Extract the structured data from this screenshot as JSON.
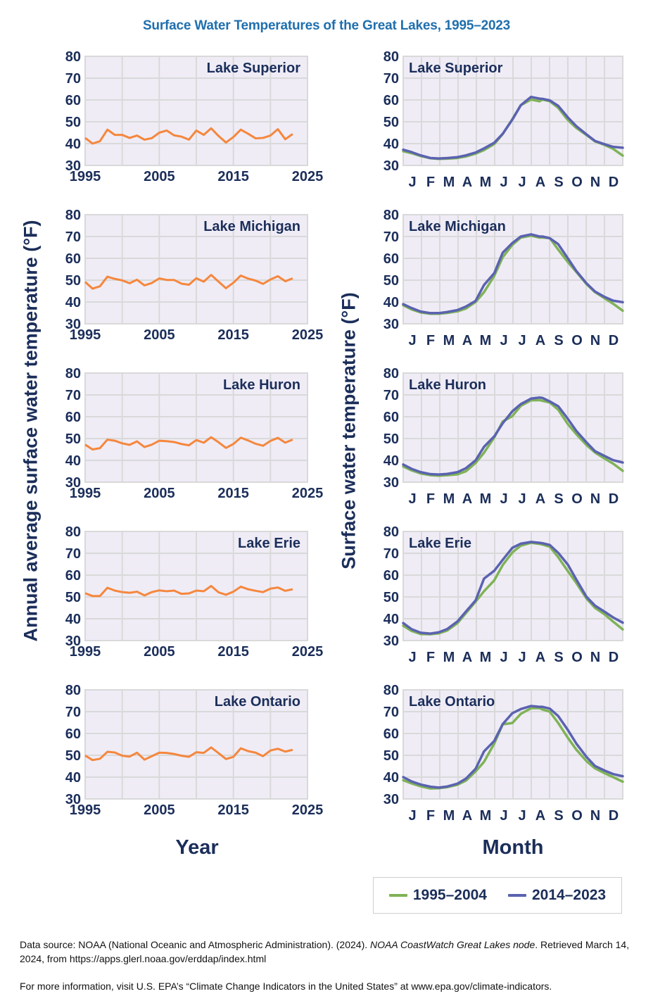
{
  "title": "Surface Water Temperatures of the Great Lakes, 1995–2023",
  "left_axis_label": "Annual average surface water temperature (°F)",
  "right_axis_label": "Surface water temperature (°F)",
  "left_xlabel": "Year",
  "right_xlabel": "Month",
  "legend": {
    "items": [
      {
        "label": "1995–2004",
        "color": "#7fb356"
      },
      {
        "label": "2014–2023",
        "color": "#5b62b0"
      }
    ]
  },
  "footer": {
    "source_prefix": "Data source: NOAA (National Oceanic and Atmospheric Administration). (2024). ",
    "source_title": "NOAA CoastWatch Great Lakes node",
    "source_suffix": ". Retrieved March 14, 2024, from https://apps.glerl.noaa.gov/erddap/index.html",
    "more_info": "For more information, visit U.S. EPA’s “Climate Change Indicators in the United States” at www.epa.gov/climate-indicators."
  },
  "colors": {
    "annual_line": "#f5873d",
    "plot_bg": "#efecf6",
    "grid": "#d9d9d9",
    "text": "#1b2e5a",
    "title": "#1f6fae"
  },
  "chart_data": [
    {
      "type": "line",
      "panel": "annual",
      "title": "Lake Superior",
      "xlabel": "Year",
      "ylabel": "Annual average surface water temperature (°F)",
      "xlim": [
        1995,
        2025
      ],
      "ylim": [
        30,
        80
      ],
      "xticks": [
        1995,
        2005,
        2015,
        2025
      ],
      "yticks": [
        30,
        40,
        50,
        60,
        70,
        80
      ],
      "grid": true,
      "x": [
        1995,
        1996,
        1997,
        1998,
        1999,
        2000,
        2001,
        2002,
        2003,
        2004,
        2005,
        2006,
        2007,
        2008,
        2009,
        2010,
        2011,
        2012,
        2013,
        2014,
        2015,
        2016,
        2017,
        2018,
        2019,
        2020,
        2021,
        2022,
        2023
      ],
      "values": [
        42.6,
        40.0,
        41.1,
        46.4,
        44.0,
        44.0,
        42.6,
        43.7,
        41.8,
        42.5,
        45.0,
        46.0,
        43.8,
        43.2,
        41.8,
        46.0,
        44.0,
        47.0,
        43.5,
        40.5,
        43.0,
        46.4,
        44.5,
        42.4,
        42.6,
        43.7,
        46.6,
        42.0,
        44.4
      ]
    },
    {
      "type": "line",
      "panel": "annual",
      "title": "Lake Michigan",
      "xlabel": "Year",
      "ylabel": "Annual average surface water temperature (°F)",
      "xlim": [
        1995,
        2025
      ],
      "ylim": [
        30,
        80
      ],
      "xticks": [
        1995,
        2005,
        2015,
        2025
      ],
      "yticks": [
        30,
        40,
        50,
        60,
        70,
        80
      ],
      "grid": true,
      "x": [
        1995,
        1996,
        1997,
        1998,
        1999,
        2000,
        2001,
        2002,
        2003,
        2004,
        2005,
        2006,
        2007,
        2008,
        2009,
        2010,
        2011,
        2012,
        2013,
        2014,
        2015,
        2016,
        2017,
        2018,
        2019,
        2020,
        2021,
        2022,
        2023
      ],
      "values": [
        49.2,
        46.1,
        47.2,
        51.6,
        50.6,
        49.9,
        48.6,
        50.2,
        47.6,
        48.7,
        50.8,
        50.1,
        50.1,
        48.4,
        47.9,
        50.9,
        49.3,
        52.4,
        49.3,
        46.3,
        48.8,
        52.1,
        50.7,
        49.8,
        48.3,
        50.3,
        51.8,
        49.5,
        50.8
      ]
    },
    {
      "type": "line",
      "panel": "annual",
      "title": "Lake Huron",
      "xlabel": "Year",
      "ylabel": "Annual average surface water temperature (°F)",
      "xlim": [
        1995,
        2025
      ],
      "ylim": [
        30,
        80
      ],
      "xticks": [
        1995,
        2005,
        2015,
        2025
      ],
      "yticks": [
        30,
        40,
        50,
        60,
        70,
        80
      ],
      "grid": true,
      "x": [
        1995,
        1996,
        1997,
        1998,
        1999,
        2000,
        2001,
        2002,
        2003,
        2004,
        2005,
        2006,
        2007,
        2008,
        2009,
        2010,
        2011,
        2012,
        2013,
        2014,
        2015,
        2016,
        2017,
        2018,
        2019,
        2020,
        2021,
        2022,
        2023
      ],
      "values": [
        47.2,
        45.0,
        45.6,
        49.5,
        49.0,
        47.8,
        47.1,
        48.7,
        46.1,
        47.2,
        49.0,
        48.8,
        48.4,
        47.5,
        46.9,
        49.3,
        48.1,
        50.6,
        48.3,
        45.7,
        47.5,
        50.4,
        49.1,
        47.6,
        46.7,
        48.9,
        50.3,
        48.1,
        49.5
      ]
    },
    {
      "type": "line",
      "panel": "annual",
      "title": "Lake Erie",
      "xlabel": "Year",
      "ylabel": "Annual average surface water temperature (°F)",
      "xlim": [
        1995,
        2025
      ],
      "ylim": [
        30,
        80
      ],
      "xticks": [
        1995,
        2005,
        2015,
        2025
      ],
      "yticks": [
        30,
        40,
        50,
        60,
        70,
        80
      ],
      "grid": true,
      "x": [
        1995,
        1996,
        1997,
        1998,
        1999,
        2000,
        2001,
        2002,
        2003,
        2004,
        2005,
        2006,
        2007,
        2008,
        2009,
        2010,
        2011,
        2012,
        2013,
        2014,
        2015,
        2016,
        2017,
        2018,
        2019,
        2020,
        2021,
        2022,
        2023
      ],
      "values": [
        51.7,
        50.4,
        50.4,
        54.2,
        52.9,
        52.2,
        51.9,
        52.4,
        50.7,
        52.2,
        53.0,
        52.6,
        52.9,
        51.4,
        51.6,
        52.9,
        52.6,
        55.0,
        52.1,
        51.0,
        52.4,
        54.7,
        53.5,
        52.8,
        52.2,
        53.8,
        54.3,
        52.8,
        53.5
      ]
    },
    {
      "type": "line",
      "panel": "annual",
      "title": "Lake Ontario",
      "xlabel": "Year",
      "ylabel": "Annual average surface water temperature (°F)",
      "xlim": [
        1995,
        2025
      ],
      "ylim": [
        30,
        80
      ],
      "xticks": [
        1995,
        2005,
        2015,
        2025
      ],
      "yticks": [
        30,
        40,
        50,
        60,
        70,
        80
      ],
      "grid": true,
      "x": [
        1995,
        1996,
        1997,
        1998,
        1999,
        2000,
        2001,
        2002,
        2003,
        2004,
        2005,
        2006,
        2007,
        2008,
        2009,
        2010,
        2011,
        2012,
        2013,
        2014,
        2015,
        2016,
        2017,
        2018,
        2019,
        2020,
        2021,
        2022,
        2023
      ],
      "values": [
        49.9,
        47.8,
        48.4,
        51.6,
        51.3,
        49.8,
        49.4,
        51.2,
        48.0,
        49.6,
        51.2,
        51.1,
        50.6,
        49.8,
        49.3,
        51.4,
        51.1,
        53.6,
        51.0,
        48.3,
        49.3,
        53.2,
        51.9,
        51.2,
        49.6,
        52.2,
        53.0,
        51.7,
        52.5
      ]
    },
    {
      "type": "line",
      "panel": "monthly",
      "title": "Lake Superior",
      "xlabel": "Month",
      "ylabel": "Surface water temperature (°F)",
      "ylim": [
        30,
        80
      ],
      "yticks": [
        30,
        40,
        50,
        60,
        70,
        80
      ],
      "grid": true,
      "categories": [
        "J",
        "F",
        "M",
        "A",
        "M",
        "J",
        "J",
        "A",
        "S",
        "O",
        "N",
        "D"
      ],
      "x_day_of_year": [
        1,
        15,
        30,
        46,
        60,
        74,
        91,
        105,
        121,
        135,
        152,
        166,
        182,
        196,
        213,
        227,
        232,
        244,
        258,
        274,
        288,
        305,
        319,
        335,
        349,
        365
      ],
      "series": [
        {
          "name": "1995–2004",
          "color": "#7fb356",
          "values": [
            36.5,
            35.6,
            34.3,
            33.3,
            33.0,
            33.1,
            33.4,
            34.1,
            35.4,
            37.0,
            39.8,
            44.4,
            51.2,
            57.6,
            60.2,
            59.4,
            60.2,
            59.4,
            56.4,
            50.8,
            47.2,
            43.9,
            41.0,
            39.4,
            37.6,
            34.5
          ]
        },
        {
          "name": "2014–2023",
          "color": "#5b62b0",
          "values": [
            37.2,
            36.1,
            34.6,
            33.4,
            33.2,
            33.4,
            33.8,
            34.6,
            35.9,
            37.8,
            40.4,
            44.5,
            51.0,
            57.6,
            61.4,
            60.6,
            60.5,
            59.8,
            57.3,
            52.0,
            48.0,
            44.2,
            41.2,
            39.7,
            38.5,
            38.1
          ]
        }
      ]
    },
    {
      "type": "line",
      "panel": "monthly",
      "title": "Lake Michigan",
      "xlabel": "Month",
      "ylabel": "Surface water temperature (°F)",
      "ylim": [
        30,
        80
      ],
      "yticks": [
        30,
        40,
        50,
        60,
        70,
        80
      ],
      "grid": true,
      "categories": [
        "J",
        "F",
        "M",
        "A",
        "M",
        "J",
        "J",
        "A",
        "S",
        "O",
        "N",
        "D"
      ],
      "x_day_of_year": [
        1,
        15,
        30,
        46,
        60,
        74,
        91,
        105,
        121,
        135,
        152,
        166,
        182,
        196,
        213,
        227,
        232,
        244,
        258,
        274,
        288,
        305,
        319,
        335,
        349,
        365
      ],
      "series": [
        {
          "name": "1995–2004",
          "color": "#7fb356",
          "values": [
            38.5,
            36.6,
            35.2,
            34.6,
            34.6,
            35.0,
            35.7,
            37.0,
            40.0,
            44.5,
            52.0,
            60.5,
            66.2,
            69.5,
            70.4,
            69.5,
            69.5,
            69.3,
            64.0,
            58.3,
            53.8,
            48.2,
            44.5,
            41.7,
            39.2,
            36.0
          ]
        },
        {
          "name": "2014–2023",
          "color": "#5b62b0",
          "values": [
            39.0,
            37.2,
            35.6,
            34.9,
            34.9,
            35.4,
            36.3,
            37.9,
            40.5,
            47.8,
            53.2,
            62.6,
            67.0,
            70.0,
            71.0,
            70.0,
            70.0,
            69.2,
            66.5,
            60.0,
            54.2,
            48.5,
            44.8,
            42.3,
            40.6,
            39.9
          ]
        }
      ]
    },
    {
      "type": "line",
      "panel": "monthly",
      "title": "Lake Huron",
      "xlabel": "Month",
      "ylabel": "Surface water temperature (°F)",
      "ylim": [
        30,
        80
      ],
      "yticks": [
        30,
        40,
        50,
        60,
        70,
        80
      ],
      "grid": true,
      "categories": [
        "J",
        "F",
        "M",
        "A",
        "M",
        "J",
        "J",
        "A",
        "S",
        "O",
        "N",
        "D"
      ],
      "x_day_of_year": [
        1,
        15,
        30,
        46,
        60,
        74,
        91,
        105,
        121,
        135,
        152,
        166,
        182,
        196,
        213,
        227,
        232,
        244,
        258,
        274,
        288,
        305,
        319,
        335,
        349,
        365
      ],
      "series": [
        {
          "name": "1995–2004",
          "color": "#7fb356",
          "values": [
            37.2,
            35.4,
            34.0,
            33.2,
            33.0,
            33.2,
            33.6,
            35.0,
            38.8,
            43.5,
            50.5,
            57.8,
            60.3,
            65.0,
            67.5,
            67.6,
            67.3,
            66.5,
            63.2,
            56.6,
            52.0,
            47.0,
            43.6,
            40.8,
            38.5,
            35.2
          ]
        },
        {
          "name": "2014–2023",
          "color": "#5b62b0",
          "values": [
            38.1,
            36.1,
            34.6,
            33.7,
            33.5,
            33.8,
            34.6,
            36.4,
            40.0,
            46.2,
            51.0,
            57.0,
            62.5,
            65.8,
            68.3,
            68.8,
            68.6,
            67.0,
            64.8,
            59.0,
            53.5,
            48.2,
            44.2,
            42.0,
            40.1,
            39.0
          ]
        }
      ]
    },
    {
      "type": "line",
      "panel": "monthly",
      "title": "Lake Erie",
      "xlabel": "Month",
      "ylabel": "Surface water temperature (°F)",
      "ylim": [
        30,
        80
      ],
      "yticks": [
        30,
        40,
        50,
        60,
        70,
        80
      ],
      "grid": true,
      "categories": [
        "J",
        "F",
        "M",
        "A",
        "M",
        "J",
        "J",
        "A",
        "S",
        "O",
        "N",
        "D"
      ],
      "x_day_of_year": [
        1,
        15,
        30,
        46,
        60,
        74,
        91,
        105,
        121,
        135,
        152,
        166,
        182,
        196,
        213,
        227,
        232,
        244,
        258,
        274,
        288,
        305,
        319,
        335,
        349,
        365
      ],
      "series": [
        {
          "name": "1995–2004",
          "color": "#7fb356",
          "values": [
            36.8,
            34.4,
            33.0,
            32.9,
            33.3,
            34.6,
            38.0,
            42.6,
            47.8,
            52.6,
            57.6,
            64.6,
            70.4,
            73.5,
            74.8,
            74.3,
            74.0,
            73.0,
            68.2,
            61.8,
            56.4,
            49.2,
            45.0,
            42.0,
            38.7,
            35.1
          ]
        },
        {
          "name": "2014–2023",
          "color": "#5b62b0",
          "values": [
            38.0,
            35.2,
            33.6,
            33.2,
            33.8,
            35.3,
            38.8,
            43.3,
            48.4,
            58.4,
            62.0,
            67.0,
            72.5,
            74.4,
            75.2,
            74.8,
            74.6,
            73.8,
            70.2,
            64.8,
            58.0,
            50.0,
            46.0,
            43.2,
            40.6,
            38.2
          ]
        }
      ]
    },
    {
      "type": "line",
      "panel": "monthly",
      "title": "Lake Ontario",
      "xlabel": "Month",
      "ylabel": "Surface water temperature (°F)",
      "ylim": [
        30,
        80
      ],
      "yticks": [
        30,
        40,
        50,
        60,
        70,
        80
      ],
      "grid": true,
      "categories": [
        "J",
        "F",
        "M",
        "A",
        "M",
        "J",
        "J",
        "A",
        "S",
        "O",
        "N",
        "D"
      ],
      "x_day_of_year": [
        1,
        15,
        30,
        46,
        60,
        74,
        91,
        105,
        121,
        135,
        152,
        166,
        182,
        196,
        213,
        227,
        232,
        244,
        258,
        274,
        288,
        305,
        319,
        335,
        349,
        365
      ],
      "series": [
        {
          "name": "1995–2004",
          "color": "#7fb356",
          "values": [
            38.6,
            37.1,
            35.8,
            34.8,
            34.9,
            35.4,
            36.5,
            38.4,
            42.6,
            47.0,
            55.4,
            64.2,
            64.8,
            69.0,
            71.6,
            71.6,
            71.0,
            70.0,
            64.8,
            58.0,
            52.6,
            47.3,
            44.0,
            41.8,
            40.0,
            37.9
          ]
        },
        {
          "name": "2014–2023",
          "color": "#5b62b0",
          "values": [
            40.0,
            38.0,
            36.6,
            35.6,
            35.2,
            35.7,
            37.0,
            39.3,
            43.8,
            51.8,
            56.6,
            64.3,
            69.3,
            71.2,
            72.6,
            72.2,
            72.2,
            71.4,
            68.0,
            61.6,
            55.4,
            49.2,
            45.1,
            43.0,
            41.4,
            40.4
          ]
        }
      ]
    }
  ]
}
